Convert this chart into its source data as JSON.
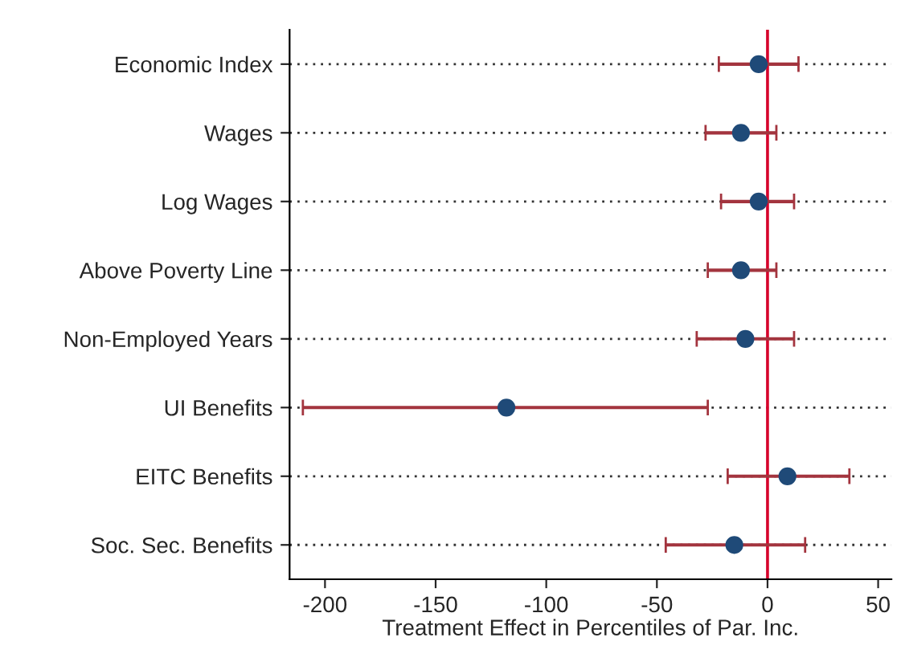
{
  "chart_data": {
    "type": "scatter",
    "orientation": "horizontal",
    "xlabel": "Treatment Effect in Percentiles of Par. Inc.",
    "categories": [
      "Economic Index",
      "Wages",
      "Log Wages",
      "Above Poverty Line",
      "Non-Employed Years",
      "UI Benefits",
      "EITC Benefits",
      "Soc. Sec. Benefits"
    ],
    "series": [
      {
        "color": "#1f4a78",
        "values": [
          -4,
          -12,
          -4,
          -12,
          -10,
          -118,
          9,
          -15
        ],
        "errors": [
          [
            -22,
            14
          ],
          [
            -28,
            4
          ],
          [
            -21,
            12
          ],
          [
            -27,
            4
          ],
          [
            -32,
            12
          ],
          [
            -210,
            -27
          ],
          [
            -18,
            37
          ],
          [
            -46,
            17
          ]
        ]
      }
    ],
    "xlim": [
      -216,
      56
    ],
    "xticks": [
      -200,
      -150,
      -100,
      -50,
      0,
      50
    ],
    "ref_lines": [
      {
        "axis": "x",
        "value": 0,
        "color": "#d6002a"
      }
    ],
    "grid": "y",
    "marker": "circle",
    "legend": false
  }
}
